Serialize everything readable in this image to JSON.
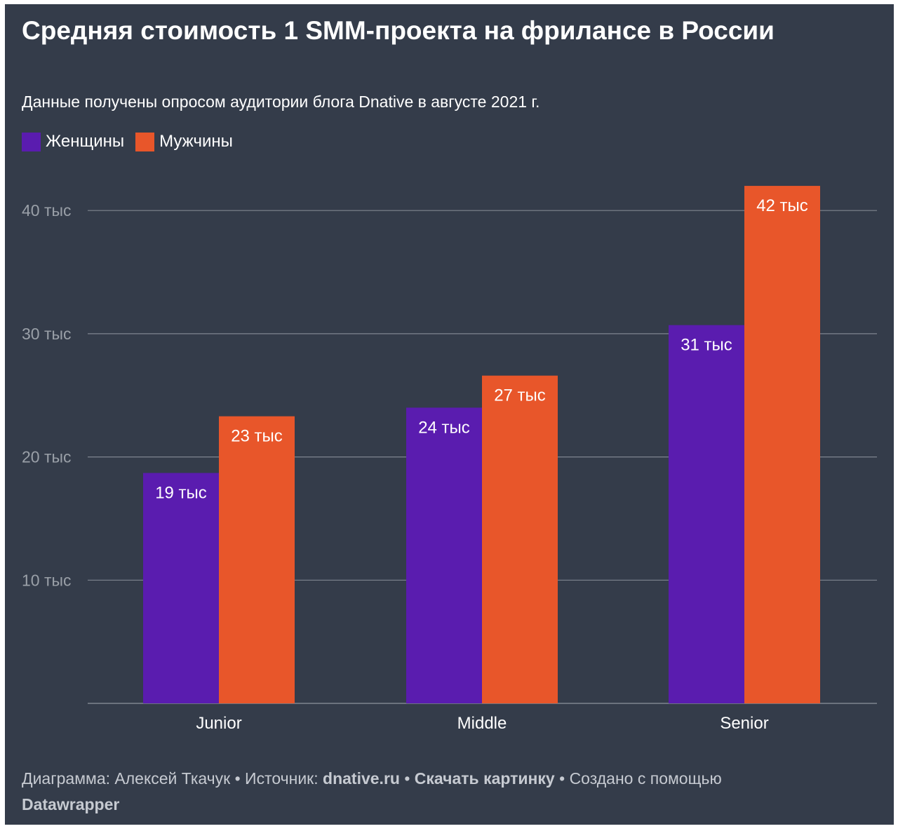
{
  "title": "Средняя стоимость 1 SMM-проекта на фрилансе в России",
  "subtitle": "Данные получены опросом аудитории блога Dnative в августе 2021 г.",
  "colors": {
    "background": "#343c4a",
    "women": "#5a1caf",
    "men": "#e8562a",
    "grid": "#7f8590",
    "tick": "#9aa0a8"
  },
  "chart_data": {
    "type": "bar",
    "title": "Средняя стоимость 1 SMM-проекта на фрилансе в России",
    "xlabel": "",
    "ylabel": "",
    "categories": [
      "Junior",
      "Middle",
      "Senior"
    ],
    "series": [
      {
        "name": "Женщины",
        "values": [
          18.7,
          24,
          30.7
        ],
        "labels": [
          "19 тыс",
          "24 тыс",
          "31 тыс"
        ]
      },
      {
        "name": "Мужчины",
        "values": [
          23.3,
          26.6,
          42
        ],
        "labels": [
          "23 тыс",
          "27 тыс",
          "42 тыс"
        ]
      }
    ],
    "yticks": [
      10,
      20,
      30,
      40
    ],
    "ytick_labels": [
      "10 тыс",
      "20 тыс",
      "30 тыс",
      "40 тыс"
    ],
    "ylim": [
      0,
      42
    ],
    "grid": true,
    "legend": "top-left"
  },
  "footer": {
    "author_prefix": "Диаграмма: Алексей Ткачук • Источник: ",
    "source": "dnative.ru",
    "sep1": " • ",
    "download": "Скачать картинку",
    "created": " • Создано с помощью ",
    "tool": "Datawrapper"
  }
}
